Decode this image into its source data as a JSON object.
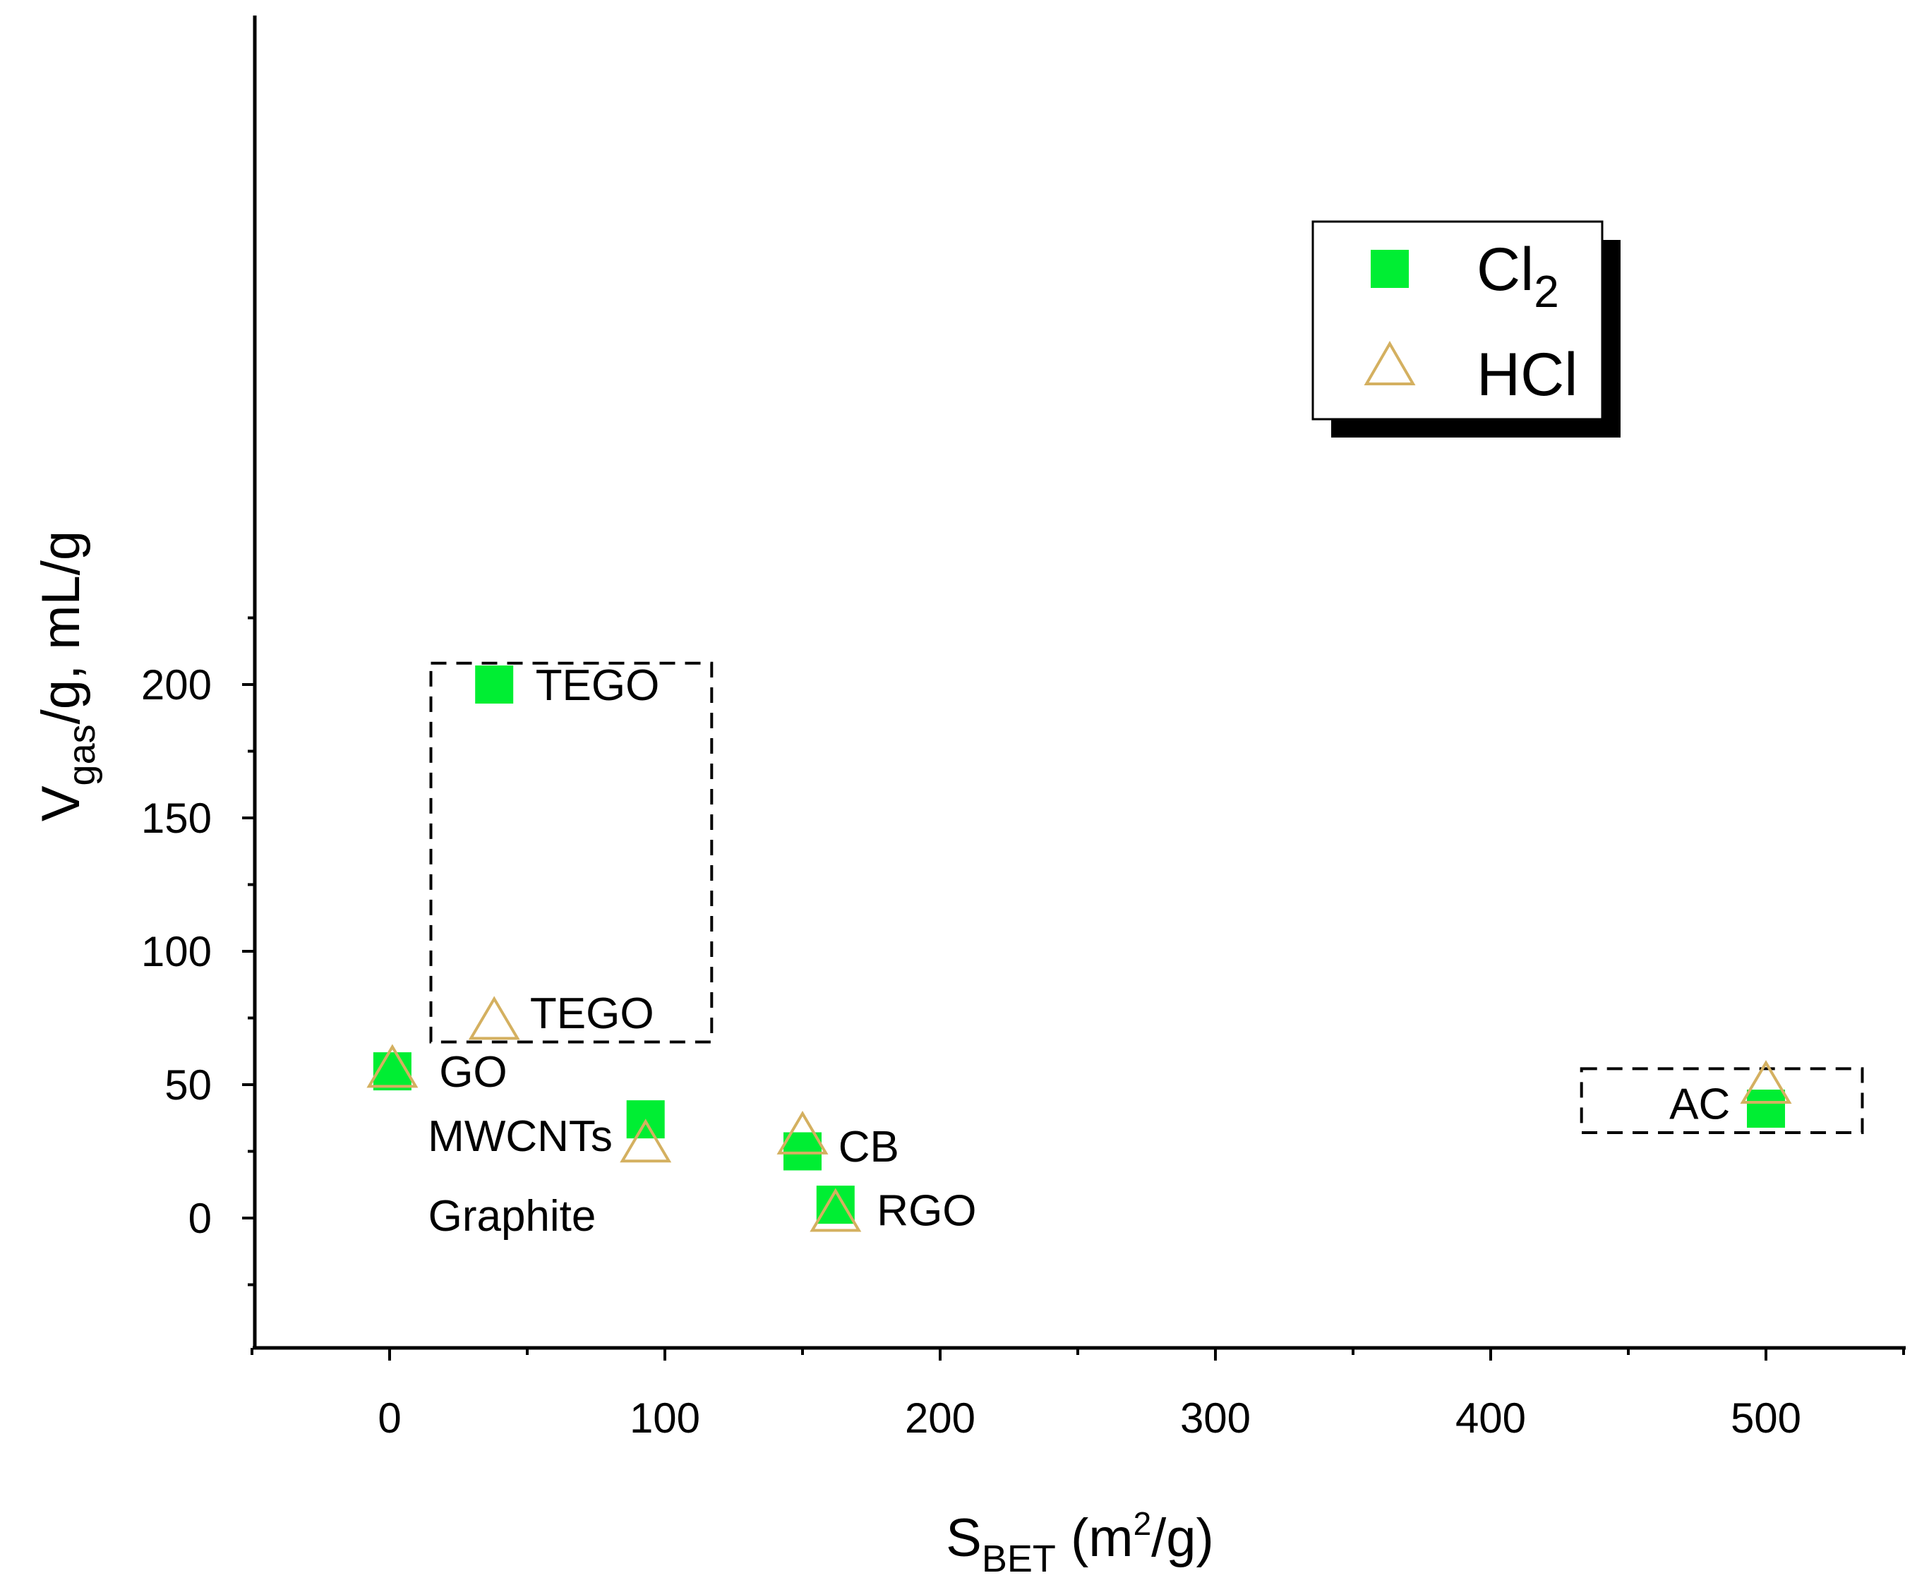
{
  "chart_data": {
    "type": "scatter",
    "xlabel": {
      "main": "S",
      "sub": "BET",
      "rest1": " (m",
      "sup": "2",
      "rest2": "/g)"
    },
    "ylabel": {
      "main": "V",
      "sub": "gas",
      "rest": "/g, mL/g"
    },
    "xlim": [
      -50,
      550
    ],
    "ylim": [
      -25,
      225
    ],
    "xticks": [
      0,
      100,
      200,
      300,
      400,
      500
    ],
    "xtick_labels": [
      "0",
      "100",
      "200",
      "300",
      "400",
      "500"
    ],
    "yticks": [
      0,
      50,
      100,
      150,
      200
    ],
    "ytick_labels": [
      "0",
      "50",
      "100",
      "150",
      "200"
    ],
    "legend_position": "top-right",
    "series": [
      {
        "name": "Cl2",
        "legend_main": "Cl",
        "legend_sub": "2",
        "marker": "square",
        "color": "#00ee33",
        "x": [
          1,
          38,
          93,
          150,
          162,
          500
        ],
        "y": [
          55,
          200,
          37,
          25,
          5,
          41
        ]
      },
      {
        "name": "HCl",
        "legend_main": "HCl",
        "legend_sub": "",
        "marker": "triangle-open",
        "color": "#d4b060",
        "x": [
          1,
          38,
          93,
          150,
          162,
          500
        ],
        "y": [
          55,
          73,
          27,
          30,
          1,
          49
        ]
      }
    ],
    "annotations": [
      {
        "text": "TEGO",
        "x": 53,
        "y": 200
      },
      {
        "text": "TEGO",
        "x": 51,
        "y": 77
      },
      {
        "text": "GO",
        "x": 18,
        "y": 55
      },
      {
        "text": "MWCNTs",
        "x": 81,
        "y": 31,
        "anchor": "end"
      },
      {
        "text": "CB",
        "x": 163,
        "y": 27
      },
      {
        "text": "Graphite",
        "x": 14,
        "y": 1
      },
      {
        "text": "RGO",
        "x": 177,
        "y": 3
      },
      {
        "text": "AC",
        "x": 487,
        "y": 43,
        "anchor": "end"
      }
    ],
    "highlight_boxes": [
      {
        "x0": 15,
        "x1": 117,
        "y0": 66,
        "y1": 208
      },
      {
        "x0": 433,
        "x1": 535,
        "y0": 32,
        "y1": 56
      }
    ]
  }
}
